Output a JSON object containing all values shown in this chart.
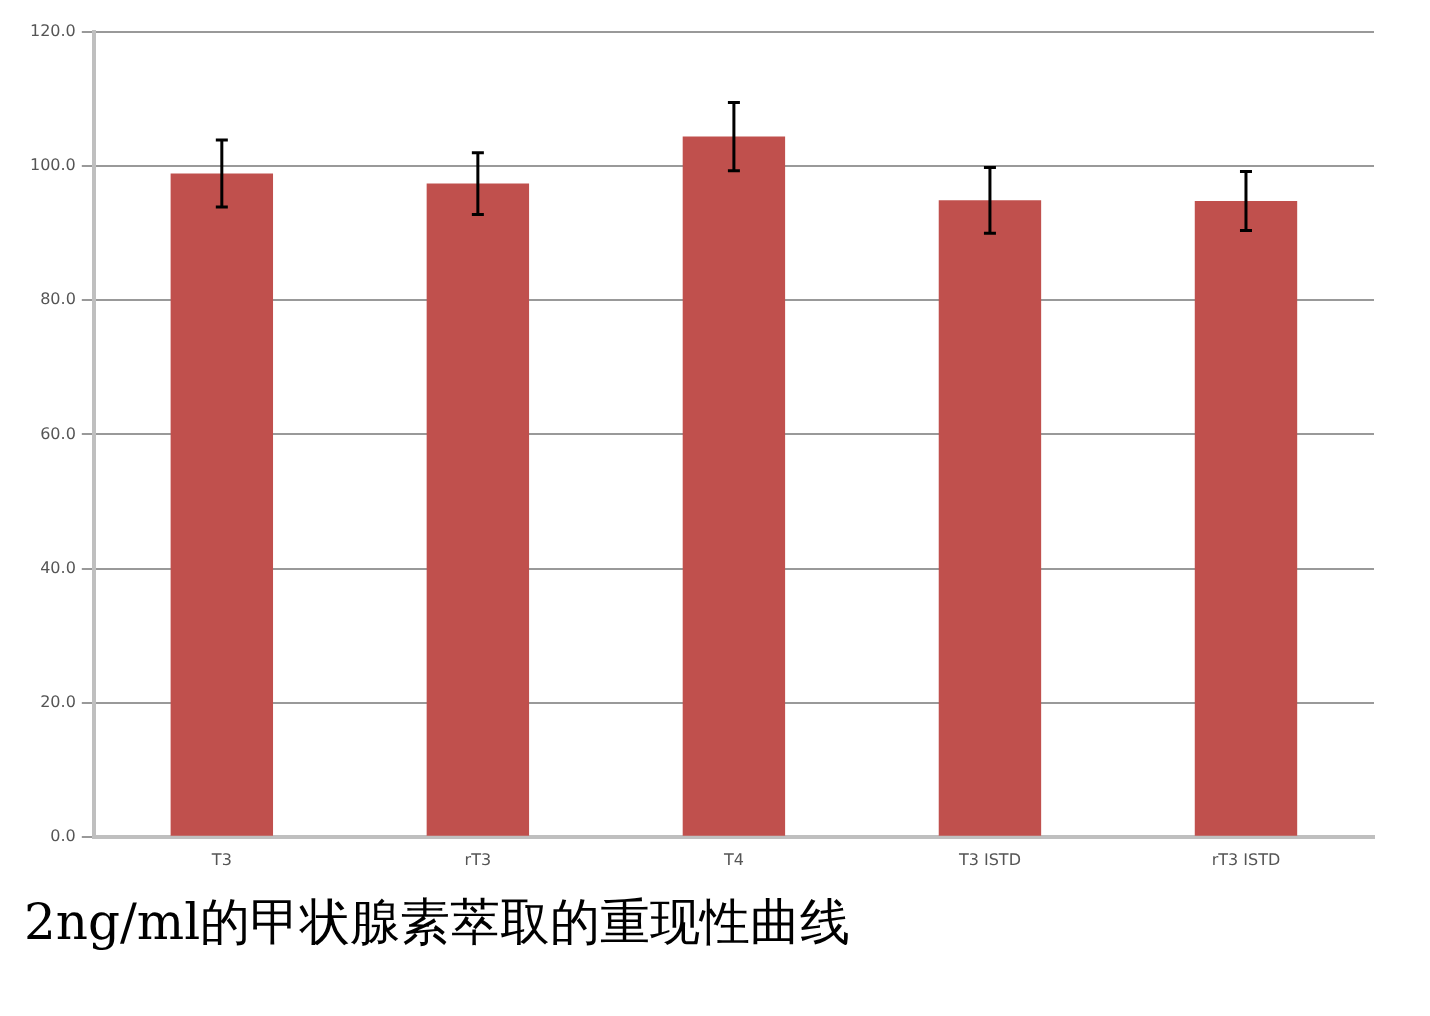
{
  "chart_data": {
    "type": "bar",
    "title": "2ng/ml的甲状腺素萃取的重现性曲线",
    "categories": [
      "T3",
      "rT3",
      "T4",
      "T3 ISTD",
      "rT3 ISTD"
    ],
    "values": [
      98.9,
      97.4,
      104.4,
      94.9,
      94.8
    ],
    "errors": [
      5.0,
      4.6,
      5.1,
      4.9,
      4.4
    ],
    "color": "#c0504d",
    "ylim": [
      0,
      120
    ],
    "yticks": [
      {
        "value": 0,
        "label": "0.0"
      },
      {
        "value": 20,
        "label": "20.0"
      },
      {
        "value": 40,
        "label": "40.0"
      },
      {
        "value": 60,
        "label": "60.0"
      },
      {
        "value": 80,
        "label": "80.0"
      },
      {
        "value": 100,
        "label": "100.0"
      },
      {
        "value": 120,
        "label": "120.0"
      }
    ],
    "grid": "y"
  }
}
